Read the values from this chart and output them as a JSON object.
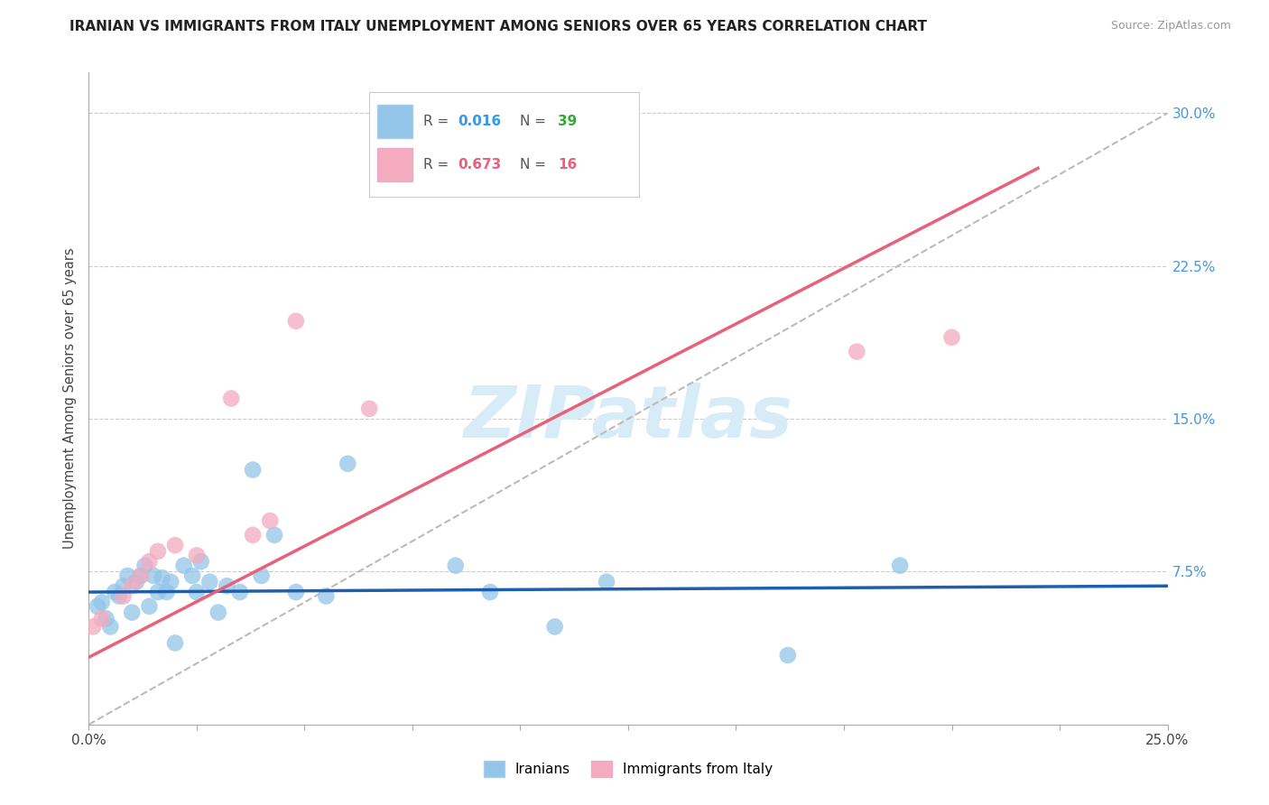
{
  "title": "IRANIAN VS IMMIGRANTS FROM ITALY UNEMPLOYMENT AMONG SENIORS OVER 65 YEARS CORRELATION CHART",
  "source": "Source: ZipAtlas.com",
  "ylabel": "Unemployment Among Seniors over 65 years",
  "xlim": [
    0.0,
    0.25
  ],
  "ylim": [
    0.0,
    0.32
  ],
  "xtick_positions": [
    0.0,
    0.025,
    0.05,
    0.075,
    0.1,
    0.125,
    0.15,
    0.175,
    0.2,
    0.225,
    0.25
  ],
  "xticklabels": [
    "0.0%",
    "",
    "",
    "",
    "",
    "",
    "",
    "",
    "",
    "",
    "25.0%"
  ],
  "yticks_right": [
    0.075,
    0.15,
    0.225,
    0.3
  ],
  "yticklabels_right": [
    "7.5%",
    "15.0%",
    "22.5%",
    "30.0%"
  ],
  "R_iranian": 0.016,
  "N_iranian": 39,
  "R_italy": 0.673,
  "N_italy": 16,
  "color_iranian": "#92C5E8",
  "color_italy": "#F4AABF",
  "line_color_iranian": "#1E5FAD",
  "line_color_italy": "#E8607A",
  "ref_line_color": "#BBBBBB",
  "legend_r_color_iranian": "#3399EE",
  "legend_n_color_iranian": "#33CC33",
  "legend_r_color_italy": "#E8607A",
  "legend_n_color_italy": "#E8607A",
  "watermark_color": "#D8ECF8",
  "iranian_x": [
    0.002,
    0.003,
    0.004,
    0.005,
    0.006,
    0.007,
    0.008,
    0.009,
    0.01,
    0.011,
    0.012,
    0.013,
    0.014,
    0.015,
    0.016,
    0.017,
    0.018,
    0.019,
    0.02,
    0.022,
    0.024,
    0.025,
    0.026,
    0.028,
    0.03,
    0.032,
    0.035,
    0.038,
    0.04,
    0.043,
    0.048,
    0.055,
    0.06,
    0.085,
    0.093,
    0.108,
    0.12,
    0.162,
    0.188
  ],
  "iranian_y": [
    0.058,
    0.06,
    0.052,
    0.048,
    0.065,
    0.063,
    0.068,
    0.073,
    0.055,
    0.07,
    0.073,
    0.078,
    0.058,
    0.073,
    0.065,
    0.072,
    0.065,
    0.07,
    0.04,
    0.078,
    0.073,
    0.065,
    0.08,
    0.07,
    0.055,
    0.068,
    0.065,
    0.125,
    0.073,
    0.093,
    0.065,
    0.063,
    0.128,
    0.078,
    0.065,
    0.048,
    0.07,
    0.034,
    0.078
  ],
  "italy_x": [
    0.001,
    0.003,
    0.008,
    0.01,
    0.012,
    0.014,
    0.016,
    0.02,
    0.025,
    0.033,
    0.038,
    0.042,
    0.048,
    0.065,
    0.178,
    0.2
  ],
  "italy_y": [
    0.048,
    0.052,
    0.063,
    0.068,
    0.073,
    0.08,
    0.085,
    0.088,
    0.083,
    0.16,
    0.093,
    0.1,
    0.198,
    0.155,
    0.183,
    0.19
  ],
  "italy_line_x0": 0.0,
  "italy_line_y0": 0.033,
  "italy_line_x1": 0.22,
  "italy_line_y1": 0.273,
  "iranian_line_x0": 0.0,
  "iranian_line_y0": 0.065,
  "iranian_line_x1": 0.25,
  "iranian_line_y1": 0.068
}
